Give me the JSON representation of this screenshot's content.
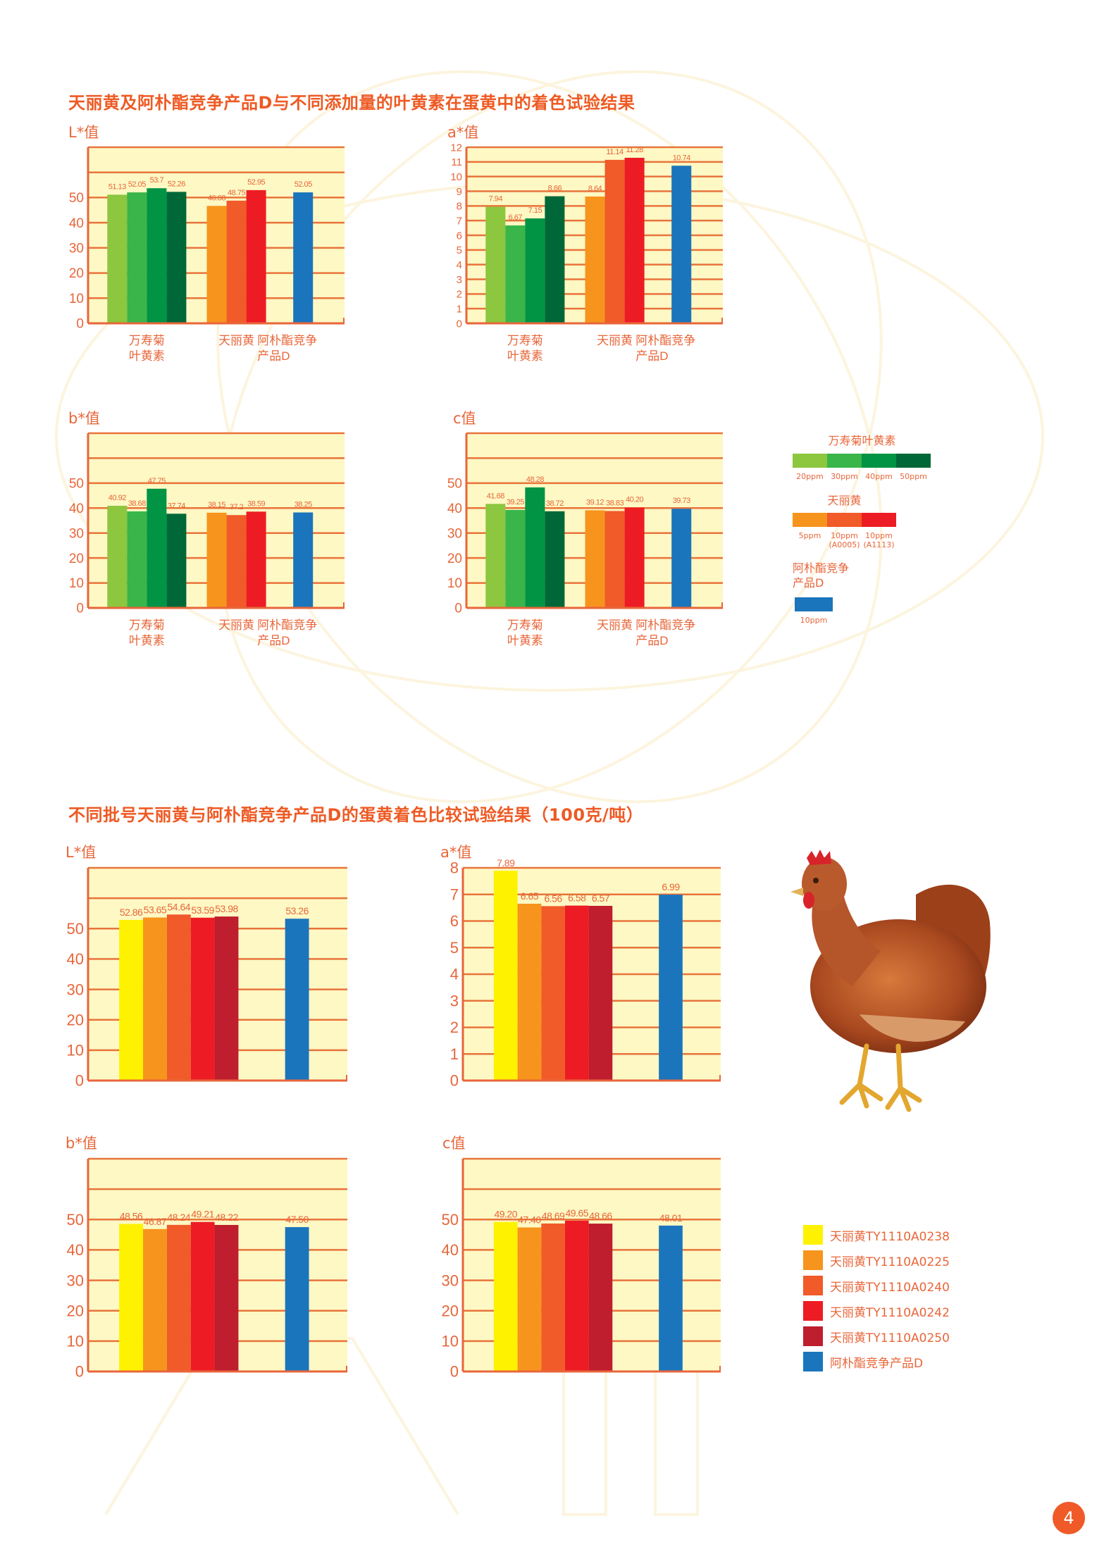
{
  "section1": {
    "title": "天丽黄及阿朴酯竞争产品D与不同添加量的叶黄素在蛋黄中的着色试验结果"
  },
  "section2": {
    "title": "不同批号天丽黄与阿朴酯竞争产品D的蛋黄着色比较试验结果（100克/吨）"
  },
  "legend1": [
    {
      "title": [
        "万寿菊叶黄素"
      ],
      "items": [
        {
          "label": [
            "20ppm"
          ],
          "color": "#8dc63f"
        },
        {
          "label": [
            "30ppm"
          ],
          "color": "#39b54a"
        },
        {
          "label": [
            "40ppm"
          ],
          "color": "#009444"
        },
        {
          "label": [
            "50ppm"
          ],
          "color": "#006838"
        }
      ]
    },
    {
      "title": [
        "天丽黄"
      ],
      "items": [
        {
          "label": [
            "5ppm"
          ],
          "color": "#f7941d"
        },
        {
          "label": [
            "10ppm",
            "(A0005)"
          ],
          "color": "#f15a29"
        },
        {
          "label": [
            "10ppm",
            "(A1113)"
          ],
          "color": "#ed1c24"
        }
      ]
    },
    {
      "title": [
        "阿朴酯竞争",
        "产品D"
      ],
      "items": [
        {
          "label": [
            "10ppm"
          ],
          "color": "#1b75bc"
        }
      ]
    }
  ],
  "legend2": [
    {
      "label": "天丽黄TY1110A0238",
      "color": "#fff200"
    },
    {
      "label": "天丽黄TY1110A0225",
      "color": "#f7941d"
    },
    {
      "label": "天丽黄TY1110A0240",
      "color": "#f15a29"
    },
    {
      "label": "天丽黄TY1110A0242",
      "color": "#ed1c24"
    },
    {
      "label": "天丽黄TY1110A0250",
      "color": "#be1e2d"
    },
    {
      "label": "阿朴酯竞争产品D",
      "color": "#1b75bc"
    }
  ],
  "page_number": "4",
  "colors": {
    "plot_bg": "#fdf8c4",
    "grid": "#e8743b",
    "text": "#e8663a"
  },
  "chart_data": [
    {
      "type": "bar",
      "ylabel": "L*值",
      "ylim": [
        0,
        70
      ],
      "yticks": [
        0,
        10,
        20,
        30,
        40,
        50
      ],
      "grid": true,
      "groups": [
        {
          "label": [
            "万寿菊",
            "叶黄素"
          ],
          "values": [
            51.13,
            52.05,
            53.7,
            52.26
          ],
          "value_labels": [
            "51.13",
            "52.05",
            "53.7",
            "52.26"
          ],
          "colors": [
            "#8dc63f",
            "#39b54a",
            "#009444",
            "#006838"
          ]
        },
        {
          "label": [
            "天丽黄"
          ],
          "values": [
            46.68,
            48.75,
            52.95
          ],
          "value_labels": [
            "46.68",
            "48.75",
            "52.95"
          ],
          "colors": [
            "#f7941d",
            "#f15a29",
            "#ed1c24"
          ]
        },
        {
          "label": [
            "阿朴酯竞争",
            "产品D"
          ],
          "values": [
            52.05
          ],
          "value_labels": [
            "52.05"
          ],
          "colors": [
            "#1b75bc"
          ]
        }
      ]
    },
    {
      "type": "bar",
      "ylabel": "a*值",
      "ylim": [
        0,
        12
      ],
      "yticks": [
        0,
        1,
        2,
        3,
        4,
        5,
        6,
        7,
        8,
        9,
        10,
        11,
        12
      ],
      "grid": true,
      "groups": [
        {
          "label": [
            "万寿菊",
            "叶黄素"
          ],
          "values": [
            7.94,
            6.67,
            7.15,
            8.66
          ],
          "value_labels": [
            "7.94",
            "6.67",
            "7.15",
            "8.66"
          ],
          "colors": [
            "#8dc63f",
            "#39b54a",
            "#009444",
            "#006838"
          ]
        },
        {
          "label": [
            "天丽黄"
          ],
          "values": [
            8.64,
            11.14,
            11.28
          ],
          "value_labels": [
            "8.64",
            "11.14",
            "11.28"
          ],
          "colors": [
            "#f7941d",
            "#f15a29",
            "#ed1c24"
          ]
        },
        {
          "label": [
            "阿朴酯竞争",
            "产品D"
          ],
          "values": [
            10.74
          ],
          "value_labels": [
            "10.74"
          ],
          "colors": [
            "#1b75bc"
          ]
        }
      ]
    },
    {
      "type": "bar",
      "ylabel": "b*值",
      "ylim": [
        0,
        70
      ],
      "yticks": [
        0,
        10,
        20,
        30,
        40,
        50
      ],
      "grid": true,
      "groups": [
        {
          "label": [
            "万寿菊",
            "叶黄素"
          ],
          "values": [
            40.92,
            38.68,
            47.75,
            37.74
          ],
          "value_labels": [
            "40.92",
            "38.68",
            "47.75",
            "37.74"
          ],
          "colors": [
            "#8dc63f",
            "#39b54a",
            "#009444",
            "#006838"
          ]
        },
        {
          "label": [
            "天丽黄"
          ],
          "values": [
            38.15,
            37.2,
            38.59
          ],
          "value_labels": [
            "38.15",
            "37.2",
            "38.59"
          ],
          "colors": [
            "#f7941d",
            "#f15a29",
            "#ed1c24"
          ]
        },
        {
          "label": [
            "阿朴酯竞争",
            "产品D"
          ],
          "values": [
            38.25
          ],
          "value_labels": [
            "38.25"
          ],
          "colors": [
            "#1b75bc"
          ]
        }
      ]
    },
    {
      "type": "bar",
      "ylabel": "c值",
      "ylim": [
        0,
        70
      ],
      "yticks": [
        0,
        10,
        20,
        30,
        40,
        50
      ],
      "grid": true,
      "groups": [
        {
          "label": [
            "万寿菊",
            "叶黄素"
          ],
          "values": [
            41.68,
            39.25,
            48.28,
            38.72
          ],
          "value_labels": [
            "41.68",
            "39.25",
            "48.28",
            "38.72"
          ],
          "colors": [
            "#8dc63f",
            "#39b54a",
            "#009444",
            "#006838"
          ]
        },
        {
          "label": [
            "天丽黄"
          ],
          "values": [
            39.12,
            38.83,
            40.2
          ],
          "value_labels": [
            "39.12",
            "38.83",
            "40.20"
          ],
          "colors": [
            "#f7941d",
            "#f15a29",
            "#ed1c24"
          ]
        },
        {
          "label": [
            "阿朴酯竞争",
            "产品D"
          ],
          "values": [
            39.73
          ],
          "value_labels": [
            "39.73"
          ],
          "colors": [
            "#1b75bc"
          ]
        }
      ]
    },
    {
      "type": "bar",
      "ylabel": "L*值",
      "ylim": [
        0,
        70
      ],
      "yticks": [
        0,
        10,
        20,
        30,
        40,
        50
      ],
      "grid": true,
      "groups": [
        {
          "label": [],
          "values": [
            52.86,
            53.65,
            54.64,
            53.59,
            53.98
          ],
          "value_labels": [
            "52.86",
            "53.65",
            "54.64",
            "53.59",
            "53.98"
          ],
          "colors": [
            "#fff200",
            "#f7941d",
            "#f15a29",
            "#ed1c24",
            "#be1e2d"
          ]
        },
        {
          "label": [],
          "values": [
            53.26
          ],
          "value_labels": [
            "53.26"
          ],
          "colors": [
            "#1b75bc"
          ]
        }
      ]
    },
    {
      "type": "bar",
      "ylabel": "a*值",
      "ylim": [
        0,
        8
      ],
      "yticks": [
        0,
        1,
        2,
        3,
        4,
        5,
        6,
        7,
        8
      ],
      "grid": true,
      "groups": [
        {
          "label": [],
          "values": [
            7.89,
            6.65,
            6.56,
            6.58,
            6.57
          ],
          "value_labels": [
            "7.89",
            "6.65",
            "6.56",
            "6.58",
            "6.57"
          ],
          "colors": [
            "#fff200",
            "#f7941d",
            "#f15a29",
            "#ed1c24",
            "#be1e2d"
          ]
        },
        {
          "label": [],
          "values": [
            6.99
          ],
          "value_labels": [
            "6.99"
          ],
          "colors": [
            "#1b75bc"
          ]
        }
      ]
    },
    {
      "type": "bar",
      "ylabel": "b*值",
      "ylim": [
        0,
        70
      ],
      "yticks": [
        0,
        10,
        20,
        30,
        40,
        50
      ],
      "grid": true,
      "groups": [
        {
          "label": [],
          "values": [
            48.56,
            46.87,
            48.24,
            49.21,
            48.22
          ],
          "value_labels": [
            "48.56",
            "46.87",
            "48.24",
            "49.21",
            "48.22"
          ],
          "colors": [
            "#fff200",
            "#f7941d",
            "#f15a29",
            "#ed1c24",
            "#be1e2d"
          ]
        },
        {
          "label": [],
          "values": [
            47.5
          ],
          "value_labels": [
            "47.50"
          ],
          "colors": [
            "#1b75bc"
          ]
        }
      ]
    },
    {
      "type": "bar",
      "ylabel": "c值",
      "ylim": [
        0,
        70
      ],
      "yticks": [
        0,
        10,
        20,
        30,
        40,
        50
      ],
      "grid": true,
      "groups": [
        {
          "label": [],
          "values": [
            49.2,
            47.4,
            48.69,
            49.65,
            48.66
          ],
          "value_labels": [
            "49.20",
            "47.40",
            "48.69",
            "49.65",
            "48.66"
          ],
          "colors": [
            "#fff200",
            "#f7941d",
            "#f15a29",
            "#ed1c24",
            "#be1e2d"
          ]
        },
        {
          "label": [],
          "values": [
            48.01
          ],
          "value_labels": [
            "48.01"
          ],
          "colors": [
            "#1b75bc"
          ]
        }
      ]
    }
  ]
}
